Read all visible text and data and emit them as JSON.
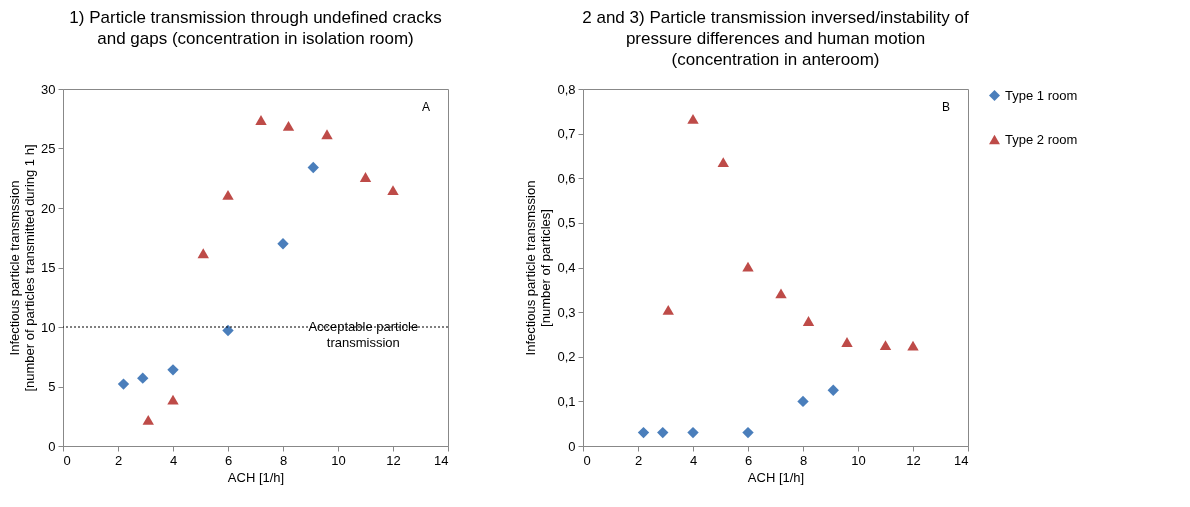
{
  "chart_data": [
    {
      "type": "scatter",
      "title": "1) Particle transmission through undefined cracks\nand gaps (concentration in isolation room)",
      "xlabel": "ACH [1/h]",
      "ylabel": "Infectious particle transmssion\n[number of particles transmitted during 1 h]",
      "xlim": [
        0,
        14
      ],
      "xticks": [
        0,
        2,
        4,
        6,
        8,
        10,
        12,
        14
      ],
      "ylim": [
        0,
        30
      ],
      "yticks": [
        0,
        5,
        10,
        15,
        20,
        25,
        30
      ],
      "grid": false,
      "legend": false,
      "annotations": [
        "A"
      ],
      "ref_lines": [
        {
          "axis": "y",
          "value": 10,
          "label": "Acceptable particle\ntransmission",
          "line_style": "dotted"
        }
      ],
      "series": [
        {
          "color": "#4a7ebb",
          "marker": "diamond",
          "x": [
            2.2,
            2.9,
            4,
            6,
            8,
            9.1
          ],
          "values": [
            5.2,
            5.7,
            6.4,
            9.7,
            17,
            23.4
          ]
        },
        {
          "color": "#be4b48",
          "marker": "triangle",
          "x": [
            3.1,
            4,
            5.1,
            6,
            7.2,
            8.2,
            9.6,
            11,
            12
          ],
          "values": [
            2.2,
            3.9,
            16.2,
            21.1,
            27.4,
            26.9,
            26.2,
            22.6,
            21.5
          ]
        }
      ]
    },
    {
      "type": "scatter",
      "title": "2 and 3) Particle transmission inversed/instability of\npressure differences  and human motion\n(concentration in anteroom)",
      "xlabel": "ACH [1/h]",
      "ylabel": "Infectious particle transmssion\n[number of particles]",
      "xlim": [
        0,
        14
      ],
      "xticks": [
        0,
        2,
        4,
        6,
        8,
        10,
        12,
        14
      ],
      "ylim": [
        0,
        0.8
      ],
      "yticks": [
        0,
        {
          "value": 0.1,
          "label": "0,1"
        },
        {
          "value": 0.2,
          "label": "0,2"
        },
        {
          "value": 0.3,
          "label": "0,3"
        },
        {
          "value": 0.4,
          "label": "0,4"
        },
        {
          "value": 0.5,
          "label": "0,5"
        },
        {
          "value": 0.6,
          "label": "0,6"
        },
        {
          "value": 0.7,
          "label": "0,7"
        },
        {
          "value": 0.8,
          "label": "0,8"
        }
      ],
      "grid": false,
      "legend": "right",
      "annotations": [
        "B"
      ],
      "series": [
        {
          "name": "Type 1 room",
          "color": "#4a7ebb",
          "marker": "diamond",
          "x": [
            2.2,
            2.9,
            4,
            6,
            8,
            9.1
          ],
          "values": [
            0.03,
            0.03,
            0.03,
            0.03,
            0.1,
            0.125
          ]
        },
        {
          "name": "Type 2 room",
          "color": "#be4b48",
          "marker": "triangle",
          "x": [
            3.1,
            4,
            5.1,
            6,
            7.2,
            8.2,
            9.6,
            11,
            12
          ],
          "values": [
            0.305,
            0.733,
            0.636,
            0.402,
            0.342,
            0.28,
            0.233,
            0.226,
            0.225
          ]
        }
      ]
    }
  ]
}
